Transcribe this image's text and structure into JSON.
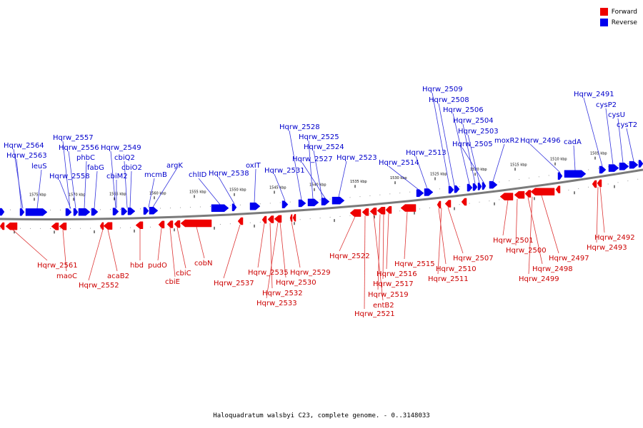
{
  "legend": [
    {
      "label": "Forward",
      "color": "#ee0000"
    },
    {
      "label": "Reverse",
      "color": "#0000ee"
    }
  ],
  "caption": "Haloquadratum walsbyi C23, complete genome. - 0..3148033",
  "scale_labels": [
    "1575 kbp",
    "1570 kbp",
    "1565 kbp",
    "1560 kbp",
    "1555 kbp",
    "1550 kbp",
    "1545 kbp",
    "1540 kbp",
    "1535 kbp",
    "1530 kbp",
    "1525 kbp",
    "1520 kbp",
    "1515 kbp",
    "1510 kbp",
    "1505 kbp"
  ],
  "reverse_genes": [
    "Hqrw_2564",
    "Hqrw_2563",
    "leuS",
    "Hqrw_2557",
    "Hqrw_2556",
    "Hqrw_2558",
    "phbC",
    "fabG",
    "Hqrw_2549",
    "cbiQ2",
    "cbiM2",
    "cbiO2",
    "mcmB",
    "argK",
    "chlID",
    "Hqrw_2538",
    "oxIT",
    "Hqrw_2531",
    "Hqrw_2528",
    "Hqrw_2525",
    "Hqrw_2524",
    "Hqrw_2527",
    "Hqrw_2523",
    "Hqrw_2514",
    "Hqrw_2513",
    "Hqrw_2509",
    "Hqrw_2508",
    "Hqrw_2506",
    "Hqrw_2504",
    "Hqrw_2503",
    "Hqrw_2505",
    "moxR2",
    "Hqrw_2496",
    "cadA",
    "Hqrw_2491",
    "cysP2",
    "cysU",
    "cysT2"
  ],
  "forward_genes": [
    "Hqrw_2561",
    "maoC",
    "Hqrw_2552",
    "acaB2",
    "hbd",
    "pudO",
    "cbiE",
    "cbiC",
    "cobN",
    "Hqrw_2537",
    "Hqrw_2535",
    "Hqrw_2532",
    "Hqrw_2533",
    "Hqrw_2530",
    "Hqrw_2529",
    "Hqrw_2522",
    "Hqrw_2521",
    "entB2",
    "Hqrw_2519",
    "Hqrw_2517",
    "Hqrw_2516",
    "Hqrw_2515",
    "Hqrw_2510",
    "Hqrw_2511",
    "Hqrw_2507",
    "Hqrw_2501",
    "Hqrw_2500",
    "Hqrw_2498",
    "Hqrw_2499",
    "Hqrw_2497",
    "Hqrw_2492",
    "Hqrw_2493"
  ]
}
